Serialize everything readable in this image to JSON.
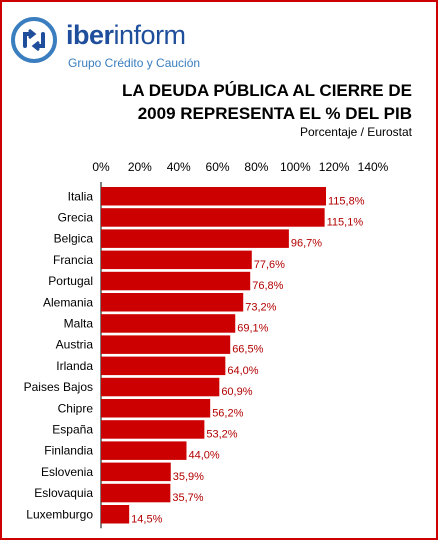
{
  "brand": {
    "name_strong": "iber",
    "name_light": "inform",
    "tagline": "Grupo Crédito y Caución",
    "colors": {
      "primary": "#1f4e9c",
      "secondary": "#3a7ebf"
    },
    "icon": "circular-arrows-logo-icon"
  },
  "frame_color": "#cc0000",
  "chart_data": {
    "type": "bar",
    "orientation": "horizontal",
    "title_lines": [
      "LA DEUDA PÚBLICA AL CIERRE DE",
      "2009 REPRESENTA EL % DEL PIB"
    ],
    "subtitle": "Porcentaje / Eurostat",
    "xlim": [
      0,
      140
    ],
    "x_ticks": [
      "0%",
      "20%",
      "40%",
      "60%",
      "80%",
      "100%",
      "120%",
      "140%"
    ],
    "x_tick_values": [
      0,
      20,
      40,
      60,
      80,
      100,
      120,
      140
    ],
    "x_axis_position": "top",
    "grid": false,
    "bar_color": "#cc0000",
    "label_color": "#b30000",
    "categories": [
      "Italia",
      "Grecia",
      "Belgica",
      "Francia",
      "Portugal",
      "Alemania",
      "Malta",
      "Austria",
      "Irlanda",
      "Paises Bajos",
      "Chipre",
      "España",
      "Finlandia",
      "Eslovenia",
      "Eslovaquia",
      "Luxemburgo"
    ],
    "values": [
      115.8,
      115.1,
      96.7,
      77.6,
      76.8,
      73.2,
      69.1,
      66.5,
      64.0,
      60.9,
      56.2,
      53.2,
      44.0,
      35.9,
      35.7,
      14.5
    ],
    "value_labels": [
      "115,8%",
      "115,1%",
      "96,7%",
      "77,6%",
      "76,8%",
      "73,2%",
      "69,1%",
      "66,5%",
      "64,0%",
      "60,9%",
      "56,2%",
      "53,2%",
      "44,0%",
      "35,9%",
      "35,7%",
      "14,5%"
    ]
  }
}
